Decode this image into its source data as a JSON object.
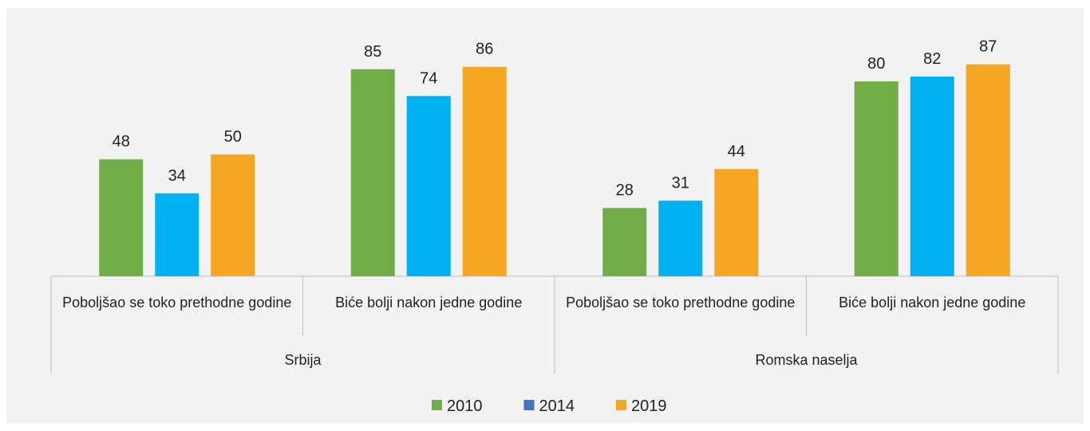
{
  "chart_data": {
    "type": "bar",
    "groups": [
      {
        "name": "Srbija",
        "categories": [
          "Poboljšao se toko prethodne godine",
          "Biće bolji nakon jedne godine"
        ]
      },
      {
        "name": "Romska naselja",
        "categories": [
          "Poboljšao se toko prethodne godine",
          "Biće bolji nakon jedne godine"
        ]
      }
    ],
    "series": [
      {
        "name": "2010",
        "color": "#70ad47",
        "values": [
          48,
          85,
          28,
          80
        ]
      },
      {
        "name": "2014",
        "color": "#00b0f0",
        "legend_color": "#4472c4",
        "values": [
          34,
          74,
          31,
          82
        ]
      },
      {
        "name": "2019",
        "color": "#f5a623",
        "values": [
          50,
          86,
          44,
          87
        ]
      }
    ],
    "ylim": [
      0,
      100
    ],
    "grid": false,
    "legend": "bottom"
  }
}
